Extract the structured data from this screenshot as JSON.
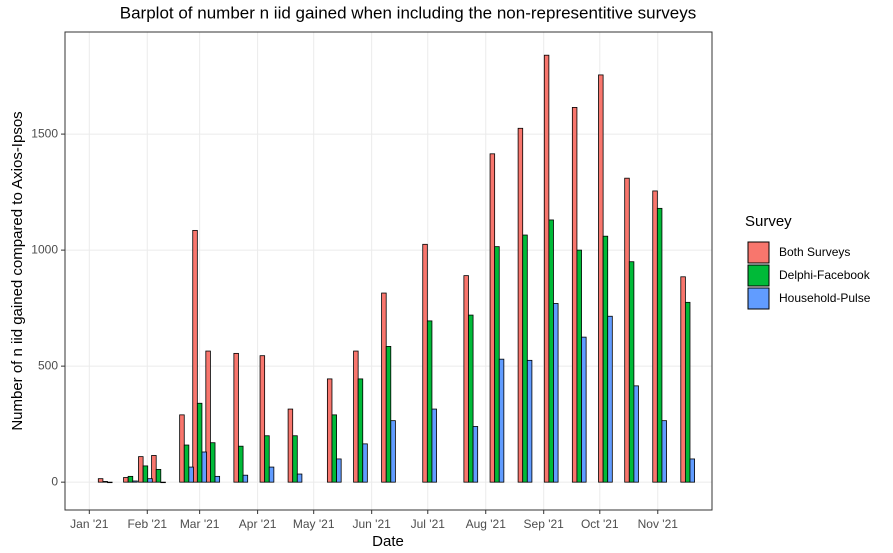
{
  "chart_data": {
    "type": "bar",
    "title": "Barplot of number n iid gained when including the non-representitive surveys",
    "x_label": "Date",
    "y_label": "Number of n iid gained compared to Axios-Ipsos",
    "legend_title": "Survey",
    "x": [
      8.5,
      22,
      30,
      37,
      52,
      59,
      66,
      81,
      95,
      110,
      131,
      145,
      160,
      182,
      204,
      218,
      233,
      247,
      262,
      276,
      290,
      305,
      320
    ],
    "series": [
      {
        "name": "Both Surveys",
        "color": "#F8766D",
        "values": [
          15,
          20,
          110,
          115,
          290,
          1085,
          565,
          555,
          545,
          315,
          445,
          565,
          815,
          1025,
          890,
          1415,
          1525,
          1840,
          1615,
          1755,
          1310,
          1255,
          885
        ]
      },
      {
        "name": "Delphi-Facebook",
        "color": "#00BA38",
        "values": [
          3,
          25,
          70,
          55,
          160,
          340,
          170,
          155,
          200,
          200,
          290,
          445,
          585,
          695,
          720,
          1015,
          1065,
          1130,
          1000,
          1060,
          950,
          1180,
          775
        ]
      },
      {
        "name": "Household-Pulse",
        "color": "#619CFF",
        "values": [
          0,
          5,
          15,
          0,
          65,
          130,
          25,
          30,
          65,
          35,
          100,
          165,
          265,
          315,
          240,
          530,
          525,
          770,
          625,
          715,
          415,
          265,
          100
        ]
      }
    ],
    "xlim": [
      -13,
      333
    ],
    "xticks": [
      {
        "value": 0,
        "label": "Jan '21"
      },
      {
        "value": 31,
        "label": "Feb '21"
      },
      {
        "value": 59,
        "label": "Mar '21"
      },
      {
        "value": 90,
        "label": "Apr '21"
      },
      {
        "value": 120,
        "label": "May '21"
      },
      {
        "value": 151,
        "label": "Jun '21"
      },
      {
        "value": 181,
        "label": "Jul '21"
      },
      {
        "value": 212,
        "label": "Aug '21"
      },
      {
        "value": 243,
        "label": "Sep '21"
      },
      {
        "value": 273,
        "label": "Oct '21"
      },
      {
        "value": 304,
        "label": "Nov '21"
      }
    ],
    "ylim": [
      -120,
      1940
    ],
    "yticks": [
      0,
      500,
      1000,
      1500
    ],
    "grid": true,
    "legend": "right"
  }
}
